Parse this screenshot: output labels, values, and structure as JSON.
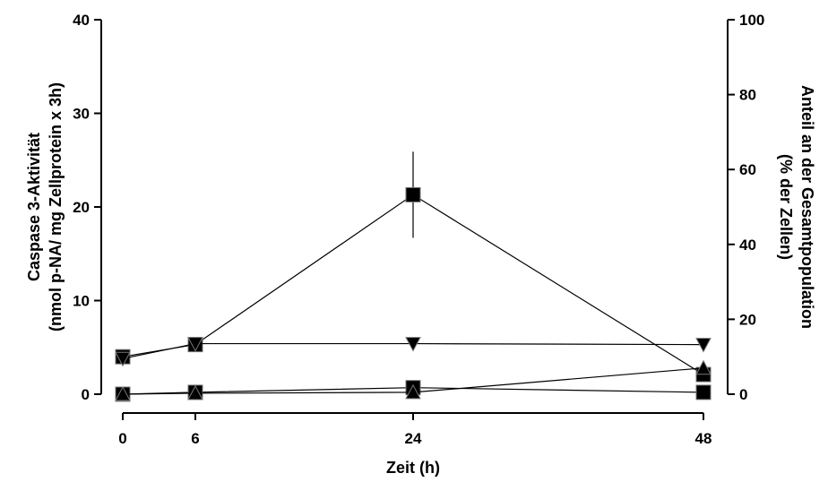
{
  "chart_data": {
    "type": "line",
    "xlabel": "Zeit (h)",
    "ylabel_left": [
      "Caspase 3-Aktivität",
      "(nmol p-NA/ mg Zellprotein x 3h)"
    ],
    "ylabel_right": [
      "Anteil an der Gesamtpopulation",
      "(% der Zellen)"
    ],
    "x_ticks": [
      0,
      6,
      24,
      48
    ],
    "y_left_ticks": [
      0,
      10,
      20,
      30,
      40
    ],
    "y_right_ticks": [
      0,
      20,
      40,
      60,
      80,
      100
    ],
    "xlim": [
      0,
      48
    ],
    "y_left_lim": [
      0,
      40
    ],
    "y_right_lim": [
      0,
      100
    ],
    "grid": false,
    "series": [
      {
        "axis": "left",
        "marker": "square",
        "x": [
          0,
          6,
          24,
          48
        ],
        "y": [
          4.0,
          5.3,
          21.3,
          2.1
        ],
        "err": [
          0.2,
          0.3,
          4.6,
          0.3
        ]
      },
      {
        "axis": "left",
        "marker": "triangle-down",
        "x": [
          0,
          6,
          24,
          48
        ],
        "y": [
          3.8,
          5.4,
          5.4,
          5.3
        ],
        "err": [
          0,
          0,
          0,
          0
        ]
      },
      {
        "axis": "left",
        "marker": "square",
        "x": [
          0,
          6,
          24,
          48
        ],
        "y": [
          0.0,
          0.2,
          0.7,
          0.2
        ],
        "err": [
          0,
          0,
          0,
          0
        ]
      },
      {
        "axis": "left",
        "marker": "triangle-up",
        "x": [
          0,
          6,
          24,
          48
        ],
        "y": [
          0.0,
          0.1,
          0.2,
          2.8
        ],
        "err": [
          0,
          0,
          0,
          0
        ]
      }
    ]
  }
}
